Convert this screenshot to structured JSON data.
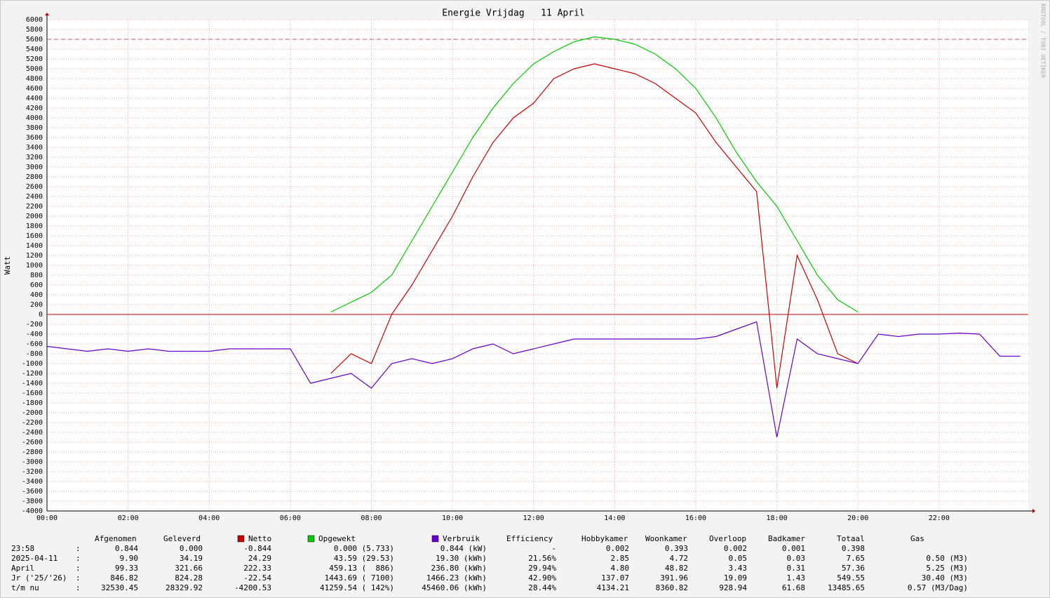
{
  "chart_data": {
    "type": "line",
    "title": "Energie Vrijdag   11 April",
    "ylabel": "Watt",
    "watermark": "RRDTOOL / TOBI OETIKER",
    "x": [
      0,
      0.5,
      1,
      1.5,
      2,
      2.5,
      3,
      3.5,
      4,
      4.5,
      5,
      5.5,
      6,
      6.5,
      7,
      7.5,
      8,
      8.5,
      9,
      9.5,
      10,
      10.5,
      11,
      11.5,
      12,
      12.5,
      13,
      13.5,
      14,
      14.5,
      15,
      15.5,
      16,
      16.5,
      17,
      17.5,
      18,
      18.5,
      19,
      19.5,
      20,
      20.5,
      21,
      21.5,
      22,
      22.5,
      23,
      23.5,
      24
    ],
    "xlim": [
      0,
      24.2
    ],
    "xticks": [
      {
        "value": 0,
        "label": "00:00"
      },
      {
        "value": 2,
        "label": "02:00"
      },
      {
        "value": 4,
        "label": "04:00"
      },
      {
        "value": 6,
        "label": "06:00"
      },
      {
        "value": 8,
        "label": "08:00"
      },
      {
        "value": 10,
        "label": "10:00"
      },
      {
        "value": 12,
        "label": "12:00"
      },
      {
        "value": 14,
        "label": "14:00"
      },
      {
        "value": 16,
        "label": "16:00"
      },
      {
        "value": 18,
        "label": "18:00"
      },
      {
        "value": 20,
        "label": "20:00"
      },
      {
        "value": 22,
        "label": "22:00"
      }
    ],
    "ylim": [
      -4000,
      6000
    ],
    "yticks": [
      -4000,
      -3800,
      -3600,
      -3400,
      -3200,
      -3000,
      -2800,
      -2600,
      -2400,
      -2200,
      -2000,
      -1800,
      -1600,
      -1400,
      -1200,
      -1000,
      -800,
      -600,
      -400,
      -200,
      0,
      200,
      400,
      600,
      800,
      1000,
      1200,
      1400,
      1600,
      1800,
      2000,
      2200,
      2400,
      2600,
      2800,
      3000,
      3200,
      3400,
      3600,
      3800,
      4000,
      4200,
      4400,
      4600,
      4800,
      5000,
      5200,
      5400,
      5600,
      5800,
      6000
    ],
    "grid": true,
    "hline": {
      "value": 5600,
      "color": "#b06060"
    },
    "series": [
      {
        "name": "Netto",
        "color": "#cc0000",
        "values": [
          null,
          null,
          null,
          null,
          null,
          null,
          null,
          null,
          null,
          null,
          null,
          null,
          null,
          null,
          -1200,
          -800,
          -1000,
          0,
          600,
          1300,
          2000,
          2800,
          3500,
          4000,
          4300,
          4800,
          5000,
          5100,
          5000,
          4900,
          4700,
          4400,
          4100,
          3500,
          3000,
          2500,
          -1500,
          1200,
          300,
          -800,
          -1000,
          null,
          null,
          null,
          null,
          null,
          null,
          null,
          null
        ]
      },
      {
        "name": "Opgewekt",
        "color": "#00cc00",
        "values": [
          null,
          null,
          null,
          null,
          null,
          null,
          null,
          null,
          null,
          null,
          null,
          null,
          null,
          null,
          50,
          250,
          450,
          800,
          1500,
          2200,
          2900,
          3600,
          4200,
          4700,
          5100,
          5350,
          5550,
          5650,
          5600,
          5500,
          5300,
          5000,
          4600,
          4000,
          3300,
          2700,
          2200,
          1500,
          800,
          300,
          50,
          null,
          null,
          null,
          null,
          null,
          null,
          null,
          null
        ]
      },
      {
        "name": "Verbruik",
        "color": "#6600cc",
        "values": [
          -650,
          -700,
          -750,
          -700,
          -750,
          -700,
          -750,
          -750,
          -750,
          -700,
          -700,
          -700,
          -700,
          -1400,
          -1300,
          -1200,
          -1500,
          -1000,
          -900,
          -1000,
          -900,
          -700,
          -600,
          -800,
          -700,
          -600,
          -500,
          -500,
          -500,
          -500,
          -500,
          -500,
          -500,
          -450,
          -300,
          -150,
          -2500,
          -500,
          -800,
          -900,
          -1000,
          -400,
          -450,
          -400,
          -400,
          -380,
          -400,
          -850,
          -850
        ]
      }
    ]
  },
  "stats": {
    "headers": [
      "Afgenomen",
      "Geleverd",
      "Efficiency",
      "Hobbykamer",
      "Woonkamer",
      "Overloop",
      "Badkamer",
      "Totaal",
      "Gas"
    ],
    "separator": ":",
    "rows": [
      {
        "label": "23:58",
        "values": [
          "0.844",
          "0.000",
          "-0.844",
          "0.000 (5.733)",
          "0.844 (kW)",
          "-",
          "0.002",
          "0.393",
          "0.002",
          "0.001",
          "0.398"
        ]
      },
      {
        "label": "2025-04-11",
        "values": [
          "9.90",
          "34.19",
          "24.29",
          "43.59 (29.53)",
          "19.30 (kWh)",
          "21.56%",
          "2.85",
          "4.72",
          "0.05",
          "0.03",
          "7.65",
          "0.50 (M3)"
        ]
      },
      {
        "label": "April",
        "values": [
          "99.33",
          "321.66",
          "222.33",
          "459.13 (  886)",
          "236.80 (kWh)",
          "29.94%",
          "4.80",
          "48.82",
          "3.43",
          "0.31",
          "57.36",
          "5.25 (M3)"
        ]
      },
      {
        "label": "Jr ('25/'26)",
        "values": [
          "846.82",
          "824.28",
          "-22.54",
          "1443.69 ( 7100)",
          "1466.23 (kWh)",
          "42.90%",
          "137.07",
          "391.96",
          "19.09",
          "1.43",
          "549.55",
          "30.40 (M3)"
        ]
      },
      {
        "label": "t/m nu",
        "values": [
          "32530.45",
          "28329.92",
          "-4200.53",
          "41259.54 ( 142%)",
          "45460.06 (kWh)",
          "28.44%",
          "4134.21",
          "8360.82",
          "928.94",
          "61.68",
          "13485.65",
          "0.57 (M3/Dag)"
        ]
      }
    ]
  }
}
